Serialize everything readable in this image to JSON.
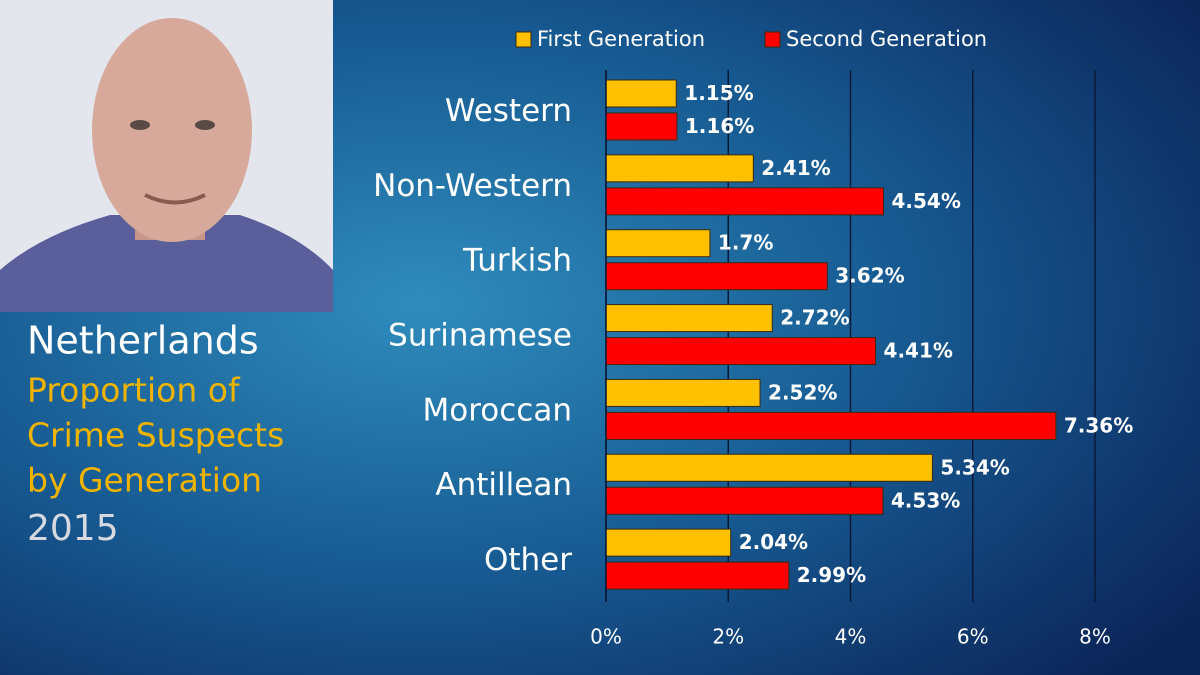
{
  "chart_data": {
    "type": "hbar",
    "title": "Netherlands",
    "subtitle_lines": [
      "Proportion of",
      "Crime Suspects",
      "by Generation"
    ],
    "year_label": "2015",
    "categories": [
      "Western",
      "Non-Western",
      "Turkish",
      "Surinamese",
      "Moroccan",
      "Antillean",
      "Other"
    ],
    "series": [
      {
        "name": "First Generation",
        "color": "#ffc000",
        "values": [
          1.15,
          2.41,
          1.7,
          2.72,
          2.52,
          5.34,
          2.04
        ],
        "value_labels": [
          "1.15%",
          "2.41%",
          "1.7%",
          "2.72%",
          "2.52%",
          "5.34%",
          "2.04%"
        ]
      },
      {
        "name": "Second Generation",
        "color": "#ff0000",
        "values": [
          1.16,
          4.54,
          3.62,
          4.41,
          7.36,
          4.53,
          2.99
        ],
        "value_labels": [
          "1.16%",
          "4.54%",
          "3.62%",
          "4.41%",
          "7.36%",
          "4.53%",
          "2.99%"
        ]
      }
    ],
    "xlim": [
      0,
      8
    ],
    "xticks": [
      {
        "value": 0,
        "label": "0%"
      },
      {
        "value": 2,
        "label": "2%"
      },
      {
        "value": 4,
        "label": "4%"
      },
      {
        "value": 6,
        "label": "6%"
      },
      {
        "value": 8,
        "label": "8%"
      }
    ],
    "grid": true,
    "legend": "top"
  }
}
